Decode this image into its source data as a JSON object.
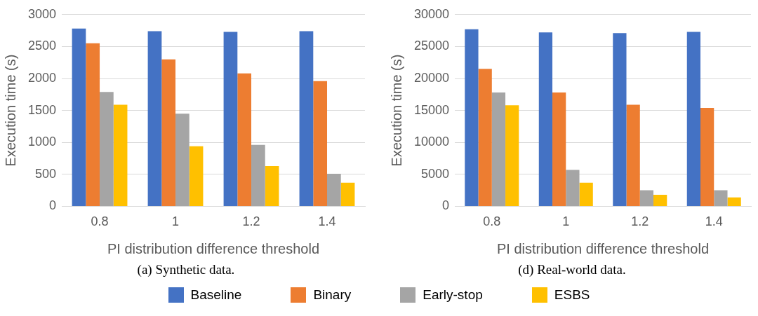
{
  "chart_data": [
    {
      "type": "bar",
      "xlabel": "PI distribution difference threshold",
      "ylabel": "Execution time (s)",
      "categories": [
        "0.8",
        "1",
        "1.2",
        "1.4"
      ],
      "series": [
        {
          "name": "Baseline",
          "color": "#4472c4",
          "values": [
            2780,
            2740,
            2730,
            2740
          ]
        },
        {
          "name": "Binary",
          "color": "#ed7d31",
          "values": [
            2550,
            2300,
            2080,
            1960
          ]
        },
        {
          "name": "Early-stop",
          "color": "#a5a5a5",
          "values": [
            1790,
            1450,
            960,
            510
          ]
        },
        {
          "name": "ESBS",
          "color": "#ffc000",
          "values": [
            1590,
            940,
            630,
            370
          ]
        }
      ],
      "ylim": [
        0,
        3000
      ],
      "yticks": [
        0,
        500,
        1000,
        1500,
        2000,
        2500,
        3000
      ],
      "grid": "y",
      "legend": "bottom",
      "annotations": [
        "(a) Synthetic data."
      ]
    },
    {
      "type": "bar",
      "xlabel": "PI distribution difference threshold",
      "ylabel": "Execution time (s)",
      "categories": [
        "0.8",
        "1",
        "1.2",
        "1.4"
      ],
      "series": [
        {
          "color": "#4472c4",
          "values": [
            27700,
            27200,
            27100,
            27300
          ]
        },
        {
          "color": "#ed7d31",
          "values": [
            21500,
            17800,
            15900,
            15400
          ]
        },
        {
          "color": "#a5a5a5",
          "values": [
            17800,
            5700,
            2500,
            2500
          ]
        },
        {
          "color": "#ffc000",
          "values": [
            15800,
            3700,
            1800,
            1400
          ]
        }
      ],
      "ylim": [
        0,
        30000
      ],
      "yticks": [
        0,
        5000,
        10000,
        15000,
        20000,
        25000,
        30000
      ],
      "grid": "y",
      "annotations": [
        "(d) Real-world data."
      ]
    }
  ]
}
